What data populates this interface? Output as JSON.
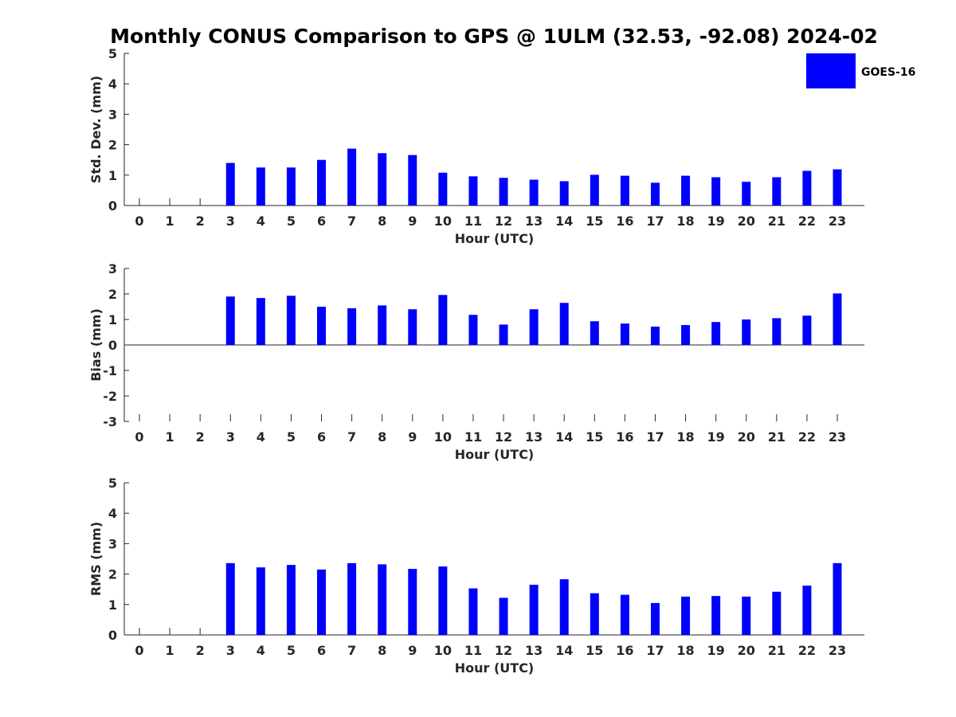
{
  "figure": {
    "title": "Monthly CONUS Comparison to GPS @ 1ULM (32.53, -92.08) 2024-02",
    "legend_label": "GOES-16",
    "bar_color": "#0000ff"
  },
  "chart_data": [
    {
      "type": "bar",
      "id": "std",
      "title": "Monthly CONUS Comparison to GPS @ 1ULM (32.53, -92.08) 2024-02",
      "xlabel": "Hour (UTC)",
      "ylabel": "Std. Dev. (mm)",
      "ylim": [
        0,
        5
      ],
      "yticks": [
        0,
        1,
        2,
        3,
        4,
        5
      ],
      "categories": [
        "0",
        "1",
        "2",
        "3",
        "4",
        "5",
        "6",
        "7",
        "8",
        "9",
        "10",
        "11",
        "12",
        "13",
        "14",
        "15",
        "16",
        "17",
        "18",
        "19",
        "20",
        "21",
        "22",
        "23"
      ],
      "series": [
        {
          "name": "GOES-16",
          "values": [
            null,
            null,
            null,
            1.4,
            1.25,
            1.25,
            1.5,
            1.87,
            1.72,
            1.66,
            1.08,
            0.96,
            0.91,
            0.85,
            0.8,
            1.01,
            0.98,
            0.75,
            0.98,
            0.93,
            0.78,
            0.93,
            1.14,
            1.19
          ]
        }
      ]
    },
    {
      "type": "bar",
      "id": "bias",
      "xlabel": "Hour (UTC)",
      "ylabel": "Bias (mm)",
      "ylim": [
        -3,
        3
      ],
      "yticks": [
        -3,
        -2,
        -1,
        0,
        1,
        2,
        3
      ],
      "categories": [
        "0",
        "1",
        "2",
        "3",
        "4",
        "5",
        "6",
        "7",
        "8",
        "9",
        "10",
        "11",
        "12",
        "13",
        "14",
        "15",
        "16",
        "17",
        "18",
        "19",
        "20",
        "21",
        "22",
        "23"
      ],
      "series": [
        {
          "name": "GOES-16",
          "values": [
            null,
            null,
            null,
            1.9,
            1.84,
            1.93,
            1.5,
            1.44,
            1.55,
            1.4,
            1.96,
            1.18,
            0.8,
            1.4,
            1.65,
            0.93,
            0.84,
            0.72,
            0.78,
            0.9,
            1.0,
            1.05,
            1.15,
            2.02
          ]
        }
      ]
    },
    {
      "type": "bar",
      "id": "rms",
      "xlabel": "Hour (UTC)",
      "ylabel": "RMS (mm)",
      "ylim": [
        0,
        5
      ],
      "yticks": [
        0,
        1,
        2,
        3,
        4,
        5
      ],
      "categories": [
        "0",
        "1",
        "2",
        "3",
        "4",
        "5",
        "6",
        "7",
        "8",
        "9",
        "10",
        "11",
        "12",
        "13",
        "14",
        "15",
        "16",
        "17",
        "18",
        "19",
        "20",
        "21",
        "22",
        "23"
      ],
      "series": [
        {
          "name": "GOES-16",
          "values": [
            null,
            null,
            null,
            2.36,
            2.22,
            2.3,
            2.15,
            2.36,
            2.32,
            2.17,
            2.25,
            1.53,
            1.22,
            1.65,
            1.83,
            1.37,
            1.32,
            1.05,
            1.26,
            1.28,
            1.26,
            1.42,
            1.62,
            2.36
          ]
        }
      ]
    }
  ]
}
